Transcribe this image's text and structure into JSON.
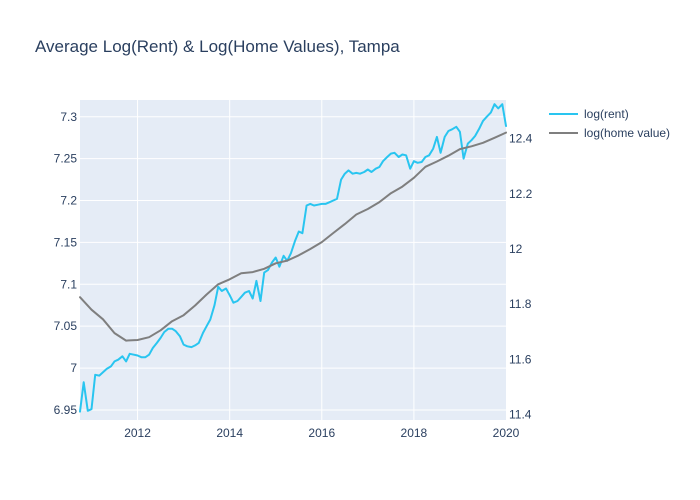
{
  "chart_data": {
    "type": "line",
    "title": "Average Log(Rent) & Log(Home Values), Tampa",
    "xlabel": "",
    "ylabel": "",
    "y2label": "",
    "xlim": [
      2010.75,
      2020.0
    ],
    "ylim": [
      6.938,
      7.32
    ],
    "y2lim": [
      11.38,
      12.54
    ],
    "x_ticks": [
      2012,
      2014,
      2016,
      2018,
      2020
    ],
    "x_tick_labels": [
      "2012",
      "2014",
      "2016",
      "2018",
      "2020"
    ],
    "y_ticks": [
      6.95,
      7.0,
      7.05,
      7.1,
      7.15,
      7.2,
      7.25,
      7.3
    ],
    "y_tick_labels": [
      "6.95",
      "7",
      "7.05",
      "7.1",
      "7.15",
      "7.2",
      "7.25",
      "7.3"
    ],
    "y2_ticks": [
      11.4,
      11.6,
      11.8,
      12.0,
      12.2,
      12.4
    ],
    "y2_tick_labels": [
      "11.4",
      "11.6",
      "11.8",
      "12",
      "12.2",
      "12.4"
    ],
    "grid": true,
    "legend_position": "top-right",
    "colors": {
      "plot_bg": "#e5ecf6",
      "grid": "#ffffff",
      "text": "#2a3f5f"
    },
    "series": [
      {
        "name": "log(rent)",
        "axis": "left",
        "color": "#29c5f0",
        "x": [
          2010.75,
          2010.83,
          2010.92,
          2011.0,
          2011.08,
          2011.17,
          2011.25,
          2011.33,
          2011.42,
          2011.5,
          2011.58,
          2011.67,
          2011.75,
          2011.83,
          2011.92,
          2012.0,
          2012.08,
          2012.17,
          2012.25,
          2012.33,
          2012.42,
          2012.5,
          2012.58,
          2012.67,
          2012.75,
          2012.83,
          2012.92,
          2013.0,
          2013.08,
          2013.17,
          2013.25,
          2013.33,
          2013.42,
          2013.5,
          2013.58,
          2013.67,
          2013.75,
          2013.83,
          2013.92,
          2014.0,
          2014.08,
          2014.17,
          2014.25,
          2014.33,
          2014.42,
          2014.5,
          2014.58,
          2014.67,
          2014.75,
          2014.83,
          2014.92,
          2015.0,
          2015.08,
          2015.17,
          2015.25,
          2015.33,
          2015.42,
          2015.5,
          2015.58,
          2015.67,
          2015.75,
          2015.83,
          2015.92,
          2016.0,
          2016.08,
          2016.17,
          2016.25,
          2016.33,
          2016.42,
          2016.5,
          2016.58,
          2016.67,
          2016.75,
          2016.83,
          2016.92,
          2017.0,
          2017.08,
          2017.17,
          2017.25,
          2017.33,
          2017.42,
          2017.5,
          2017.58,
          2017.67,
          2017.75,
          2017.83,
          2017.92,
          2018.0,
          2018.08,
          2018.17,
          2018.25,
          2018.33,
          2018.42,
          2018.5,
          2018.58,
          2018.67,
          2018.75,
          2018.83,
          2018.92,
          2019.0,
          2019.08,
          2019.17,
          2019.25,
          2019.33,
          2019.42,
          2019.5,
          2019.58,
          2019.67,
          2019.75,
          2019.83,
          2019.92,
          2020.0
        ],
        "y": [
          6.948,
          6.983,
          6.949,
          6.951,
          6.992,
          6.991,
          6.995,
          6.999,
          7.002,
          7.008,
          7.01,
          7.014,
          7.008,
          7.017,
          7.016,
          7.015,
          7.013,
          7.013,
          7.016,
          7.024,
          7.03,
          7.036,
          7.043,
          7.047,
          7.047,
          7.044,
          7.038,
          7.028,
          7.026,
          7.025,
          7.027,
          7.03,
          7.042,
          7.05,
          7.058,
          7.075,
          7.097,
          7.092,
          7.095,
          7.087,
          7.078,
          7.08,
          7.085,
          7.09,
          7.092,
          7.083,
          7.104,
          7.08,
          7.114,
          7.117,
          7.126,
          7.132,
          7.121,
          7.134,
          7.128,
          7.137,
          7.152,
          7.163,
          7.161,
          7.194,
          7.196,
          7.194,
          7.195,
          7.196,
          7.196,
          7.198,
          7.2,
          7.202,
          7.225,
          7.232,
          7.236,
          7.232,
          7.233,
          7.232,
          7.234,
          7.237,
          7.234,
          7.238,
          7.24,
          7.247,
          7.252,
          7.256,
          7.257,
          7.252,
          7.255,
          7.254,
          7.238,
          7.247,
          7.245,
          7.246,
          7.252,
          7.254,
          7.262,
          7.276,
          7.257,
          7.276,
          7.283,
          7.285,
          7.288,
          7.282,
          7.25,
          7.268,
          7.272,
          7.277,
          7.286,
          7.295,
          7.3,
          7.305,
          7.315,
          7.31,
          7.315,
          7.289
        ]
      },
      {
        "name": "log(home value)",
        "axis": "right",
        "color": "#7f7f7f",
        "x": [
          2010.75,
          2011.0,
          2011.25,
          2011.5,
          2011.75,
          2012.0,
          2012.25,
          2012.5,
          2012.75,
          2013.0,
          2013.25,
          2013.5,
          2013.75,
          2014.0,
          2014.25,
          2014.5,
          2014.75,
          2015.0,
          2015.25,
          2015.5,
          2015.75,
          2016.0,
          2016.25,
          2016.5,
          2016.75,
          2017.0,
          2017.25,
          2017.5,
          2017.75,
          2018.0,
          2018.25,
          2018.5,
          2018.75,
          2019.0,
          2019.25,
          2019.5,
          2019.75,
          2020.0
        ],
        "y": [
          11.825,
          11.78,
          11.745,
          11.695,
          11.668,
          11.67,
          11.68,
          11.705,
          11.738,
          11.76,
          11.795,
          11.835,
          11.872,
          11.89,
          11.912,
          11.916,
          11.928,
          11.948,
          11.958,
          11.977,
          12.0,
          12.025,
          12.058,
          12.09,
          12.125,
          12.145,
          12.17,
          12.202,
          12.226,
          12.258,
          12.298,
          12.317,
          12.338,
          12.362,
          12.372,
          12.385,
          12.403,
          12.422
        ]
      }
    ]
  }
}
